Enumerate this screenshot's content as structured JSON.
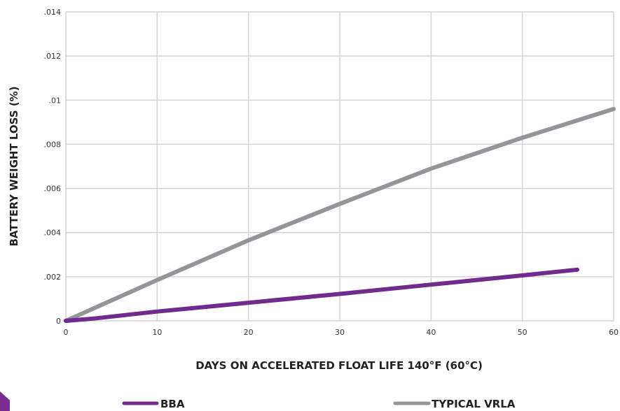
{
  "chart_data": {
    "type": "line",
    "title": "",
    "xlabel": "DAYS ON ACCELERATED FLOAT LIFE  140°F (60°C)",
    "ylabel": "BATTERY WEIGHT LOSS (%)",
    "xlim": [
      0,
      60
    ],
    "ylim": [
      0,
      0.014
    ],
    "x_ticks": [
      0,
      10,
      20,
      30,
      40,
      50,
      60
    ],
    "x_tick_labels": [
      "0",
      "10",
      "20",
      "30",
      "40",
      "50",
      "60"
    ],
    "y_ticks": [
      0,
      0.002,
      0.004,
      0.006,
      0.008,
      0.01,
      0.012,
      0.014
    ],
    "y_tick_labels": [
      "0",
      ".002",
      ".004",
      ".006",
      ".008",
      ".01",
      ".012",
      ".014"
    ],
    "grid": true,
    "legend_position": "bottom",
    "series": [
      {
        "name": "BBA",
        "color": "#6f2b8e",
        "x": [
          0,
          3,
          10,
          20,
          30,
          40,
          50,
          56
        ],
        "y": [
          0,
          0.0001,
          0.00042,
          0.00082,
          0.00122,
          0.00164,
          0.00206,
          0.00232
        ]
      },
      {
        "name": "TYPICAL VRLA",
        "color": "#939598",
        "x": [
          0,
          10,
          20,
          30,
          40,
          50,
          60
        ],
        "y": [
          0,
          0.00185,
          0.00365,
          0.0053,
          0.0069,
          0.0083,
          0.0096
        ]
      }
    ]
  }
}
